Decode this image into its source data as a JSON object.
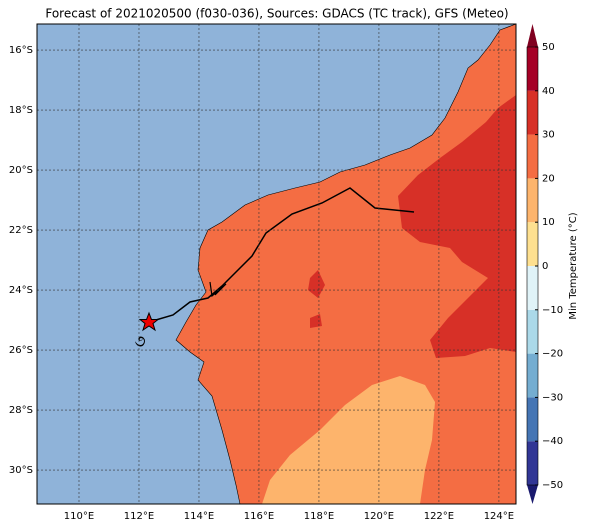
{
  "title": "Forecast of 2021020500 (f030-036), Sources: GDACS (TC track), GFS (Meteo)",
  "lonlim": [
    108.6,
    124.57
  ],
  "latlim": [
    -31.13,
    -15.13
  ],
  "lonticks": [
    {
      "value": 110,
      "label": "110°E"
    },
    {
      "value": 112,
      "label": "112°E"
    },
    {
      "value": 114,
      "label": "114°E"
    },
    {
      "value": 116,
      "label": "116°E"
    },
    {
      "value": 118,
      "label": "118°E"
    },
    {
      "value": 120,
      "label": "120°E"
    },
    {
      "value": 122,
      "label": "122°E"
    },
    {
      "value": 124,
      "label": "124°E"
    }
  ],
  "latticks": [
    {
      "value": -16,
      "label": "16°S"
    },
    {
      "value": -18,
      "label": "18°S"
    },
    {
      "value": -20,
      "label": "20°S"
    },
    {
      "value": -22,
      "label": "22°S"
    },
    {
      "value": -24,
      "label": "24°S"
    },
    {
      "value": -26,
      "label": "26°S"
    },
    {
      "value": -28,
      "label": "28°S"
    },
    {
      "value": -30,
      "label": "30°S"
    }
  ],
  "colorbar": {
    "label": "Min Temperature (°C)",
    "lim": [
      -50,
      50
    ],
    "levels": [
      -50,
      -40,
      -30,
      -20,
      -10,
      0,
      10,
      20,
      30,
      40,
      50
    ],
    "colors": [
      "#313695",
      "#4575b4",
      "#74add1",
      "#abd9e9",
      "#e0f3f8",
      "#fee090",
      "#fdb46c",
      "#f46d43",
      "#d73027",
      "#a50026"
    ],
    "under": "#1a1a6e",
    "over": "#800020",
    "ticks": [
      50,
      40,
      30,
      20,
      10,
      0,
      {
        "value": -10,
        "label": "−10"
      },
      {
        "value": -20,
        "label": "−20"
      },
      {
        "value": -30,
        "label": "−30"
      },
      {
        "value": -40,
        "label": "−40"
      },
      {
        "value": -50,
        "label": "−50"
      }
    ]
  }
}
